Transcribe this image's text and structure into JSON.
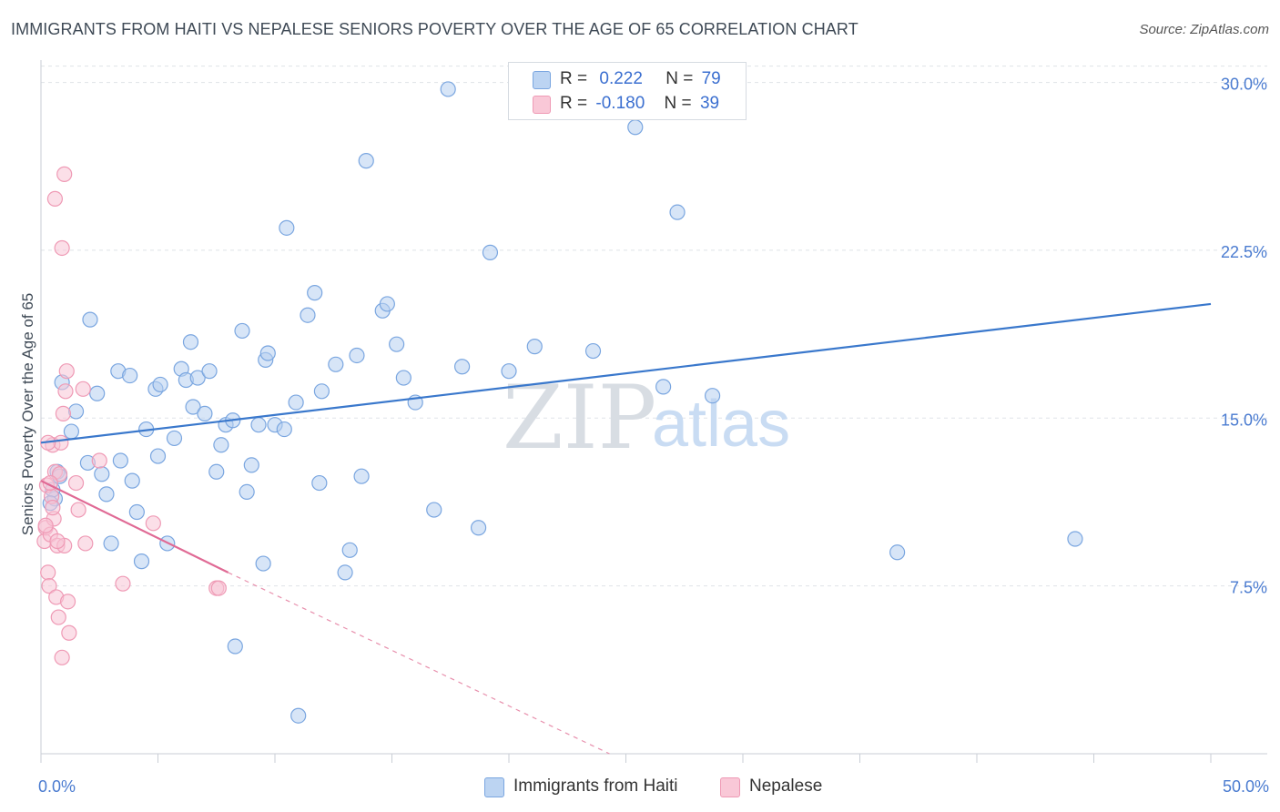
{
  "header": {
    "title": "IMMIGRANTS FROM HAITI VS NEPALESE SENIORS POVERTY OVER THE AGE OF 65 CORRELATION CHART",
    "source": "Source: ZipAtlas.com"
  },
  "watermark": {
    "zip": "ZIP",
    "atlas": "atlas"
  },
  "legend": {
    "rows": [
      {
        "r_label": "R =",
        "r_value": "0.222",
        "n_label": "N =",
        "n_value": "79",
        "color": "#a9c7ee"
      },
      {
        "r_label": "R =",
        "r_value": "-0.180",
        "n_label": "N =",
        "n_value": "39",
        "color": "#f6b8cb"
      }
    ]
  },
  "chart_data": {
    "type": "scatter",
    "ylabel": "Seniors Poverty Over the Age of 65",
    "xlim": [
      0,
      50
    ],
    "ylim": [
      0,
      31
    ],
    "x_tick_labels": [
      "0.0%",
      "50.0%"
    ],
    "y_ticks": [
      {
        "value": 7.5,
        "label": "7.5%"
      },
      {
        "value": 15.0,
        "label": "15.0%"
      },
      {
        "value": 22.5,
        "label": "22.5%"
      },
      {
        "value": 30.0,
        "label": "30.0%"
      }
    ],
    "grid": "horizontal-dashed",
    "legend_position": "top-center",
    "series": [
      {
        "name": "Immigrants from Haiti",
        "color": "#7aa6e0",
        "fill": "#b7d0f0",
        "trend": {
          "x": [
            0,
            50
          ],
          "y": [
            13.9,
            20.1
          ],
          "style": "solid",
          "color": "#3a78cc"
        },
        "points": [
          [
            0.6,
            11.4
          ],
          [
            0.5,
            11.8
          ],
          [
            0.7,
            12.6
          ],
          [
            0.9,
            16.6
          ],
          [
            1.3,
            14.4
          ],
          [
            1.5,
            15.3
          ],
          [
            2.0,
            13.0
          ],
          [
            2.1,
            19.4
          ],
          [
            2.4,
            16.1
          ],
          [
            2.6,
            12.5
          ],
          [
            2.8,
            11.6
          ],
          [
            3.0,
            9.4
          ],
          [
            3.3,
            17.1
          ],
          [
            3.4,
            13.1
          ],
          [
            3.8,
            16.9
          ],
          [
            3.9,
            12.2
          ],
          [
            4.1,
            10.8
          ],
          [
            4.3,
            8.6
          ],
          [
            4.5,
            14.5
          ],
          [
            4.9,
            16.3
          ],
          [
            5.0,
            13.3
          ],
          [
            5.1,
            16.5
          ],
          [
            5.4,
            9.4
          ],
          [
            5.7,
            14.1
          ],
          [
            6.0,
            17.2
          ],
          [
            6.2,
            16.7
          ],
          [
            6.4,
            18.4
          ],
          [
            6.5,
            15.5
          ],
          [
            6.7,
            16.8
          ],
          [
            7.0,
            15.2
          ],
          [
            7.2,
            17.1
          ],
          [
            7.5,
            12.6
          ],
          [
            7.7,
            13.8
          ],
          [
            7.9,
            14.7
          ],
          [
            8.2,
            14.9
          ],
          [
            8.3,
            4.8
          ],
          [
            8.6,
            18.9
          ],
          [
            8.8,
            11.7
          ],
          [
            9.0,
            12.9
          ],
          [
            9.3,
            14.7
          ],
          [
            9.5,
            8.5
          ],
          [
            9.6,
            17.6
          ],
          [
            9.7,
            17.9
          ],
          [
            10.0,
            14.7
          ],
          [
            10.4,
            14.5
          ],
          [
            10.5,
            23.5
          ],
          [
            10.9,
            15.7
          ],
          [
            11.0,
            1.7
          ],
          [
            11.4,
            19.6
          ],
          [
            11.7,
            20.6
          ],
          [
            11.9,
            12.1
          ],
          [
            12.0,
            16.2
          ],
          [
            12.6,
            17.4
          ],
          [
            13.0,
            8.1
          ],
          [
            13.2,
            9.1
          ],
          [
            13.5,
            17.8
          ],
          [
            13.7,
            12.4
          ],
          [
            13.9,
            26.5
          ],
          [
            14.6,
            19.8
          ],
          [
            14.8,
            20.1
          ],
          [
            15.2,
            18.3
          ],
          [
            15.5,
            16.8
          ],
          [
            16.0,
            15.7
          ],
          [
            16.8,
            10.9
          ],
          [
            17.4,
            29.7
          ],
          [
            18.0,
            17.3
          ],
          [
            18.7,
            10.1
          ],
          [
            19.2,
            22.4
          ],
          [
            20.0,
            17.1
          ],
          [
            21.1,
            18.2
          ],
          [
            23.6,
            18.0
          ],
          [
            25.4,
            28.0
          ],
          [
            26.6,
            16.4
          ],
          [
            27.2,
            24.2
          ],
          [
            28.7,
            16.0
          ],
          [
            36.6,
            9.0
          ],
          [
            44.2,
            9.6
          ],
          [
            0.4,
            11.2
          ],
          [
            0.8,
            12.4
          ]
        ]
      },
      {
        "name": "Nepalese",
        "color": "#ef9ab5",
        "fill": "#f8c5d5",
        "trend": {
          "x": [
            0,
            8
          ],
          "y": [
            12.2,
            8.1
          ],
          "style": "solid",
          "color": "#e06a95"
        },
        "trend_extension": {
          "x": [
            8,
            24.3
          ],
          "y": [
            8.1,
            0
          ],
          "style": "dashed",
          "color": "#e890ad"
        },
        "points": [
          [
            0.15,
            9.5
          ],
          [
            0.2,
            10.1
          ],
          [
            0.25,
            12.0
          ],
          [
            0.3,
            8.1
          ],
          [
            0.35,
            7.5
          ],
          [
            0.4,
            9.8
          ],
          [
            0.45,
            11.5
          ],
          [
            0.5,
            13.8
          ],
          [
            0.55,
            10.5
          ],
          [
            0.6,
            12.6
          ],
          [
            0.65,
            7.0
          ],
          [
            0.7,
            9.3
          ],
          [
            0.75,
            6.1
          ],
          [
            0.8,
            12.5
          ],
          [
            0.85,
            13.9
          ],
          [
            0.9,
            4.3
          ],
          [
            0.95,
            15.2
          ],
          [
            1.0,
            9.3
          ],
          [
            1.05,
            16.2
          ],
          [
            1.1,
            17.1
          ],
          [
            1.15,
            6.8
          ],
          [
            1.2,
            5.4
          ],
          [
            0.6,
            24.8
          ],
          [
            1.0,
            25.9
          ],
          [
            0.9,
            22.6
          ],
          [
            1.5,
            12.1
          ],
          [
            1.6,
            10.9
          ],
          [
            1.8,
            16.3
          ],
          [
            1.9,
            9.4
          ],
          [
            2.5,
            13.1
          ],
          [
            3.5,
            7.6
          ],
          [
            4.8,
            10.3
          ],
          [
            7.5,
            7.4
          ],
          [
            7.6,
            7.4
          ],
          [
            0.3,
            13.9
          ],
          [
            0.5,
            11.0
          ],
          [
            0.7,
            9.5
          ],
          [
            0.4,
            12.1
          ],
          [
            0.2,
            10.2
          ]
        ]
      }
    ]
  }
}
